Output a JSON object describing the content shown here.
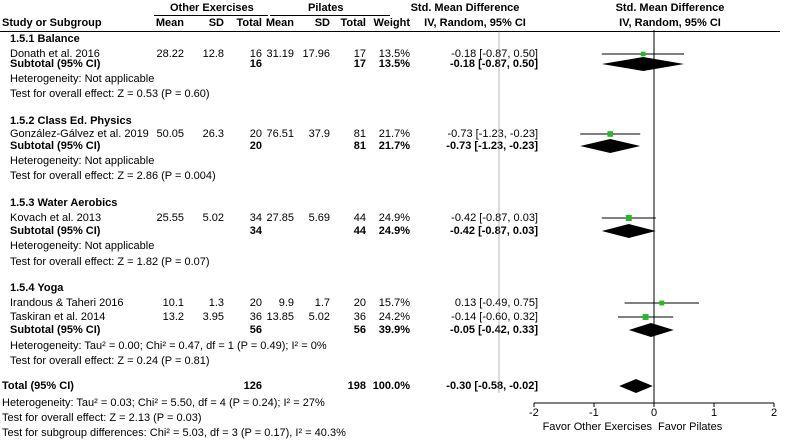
{
  "header": {
    "group1": "Other Exercises",
    "group2": "Pilates",
    "smd_title": "Std. Mean Difference",
    "study_col": "Study or Subgroup",
    "mean": "Mean",
    "sd": "SD",
    "total": "Total",
    "weight": "Weight",
    "method_table": "IV, Random, 95% CI",
    "method_plot": "IV, Random, 95% CI"
  },
  "subgroups": [
    {
      "title": "1.5.1 Balance",
      "studies": [
        {
          "name": "Donath et al. 2016",
          "m1": "28.22",
          "sd1": "12.8",
          "n1": "16",
          "m2": "31.19",
          "sd2": "17.96",
          "n2": "17",
          "weight": "13.5%",
          "ci_text": "-0.18 [-0.87, 0.50]"
        }
      ],
      "subtotal": {
        "label": "Subtotal (95% CI)",
        "n1": "16",
        "n2": "17",
        "weight": "13.5%",
        "ci_text": "-0.18 [-0.87, 0.50]"
      },
      "heterogeneity": "Heterogeneity: Not applicable",
      "overall": "Test for overall effect: Z = 0.53 (P = 0.60)"
    },
    {
      "title": "1.5.2 Class Ed. Physics",
      "studies": [
        {
          "name": "González-Gálvez et al. 2019",
          "m1": "50.05",
          "sd1": "26.3",
          "n1": "20",
          "m2": "76.51",
          "sd2": "37.9",
          "n2": "81",
          "weight": "21.7%",
          "ci_text": "-0.73 [-1.23, -0.23]"
        }
      ],
      "subtotal": {
        "label": "Subtotal (95% CI)",
        "n1": "20",
        "n2": "81",
        "weight": "21.7%",
        "ci_text": "-0.73 [-1.23, -0.23]"
      },
      "heterogeneity": "Heterogeneity: Not applicable",
      "overall": "Test for overall effect: Z = 2.86 (P = 0.004)"
    },
    {
      "title": "1.5.3 Water Aerobics",
      "studies": [
        {
          "name": "Kovach et al. 2013",
          "m1": "25.55",
          "sd1": "5.02",
          "n1": "34",
          "m2": "27.85",
          "sd2": "5.69",
          "n2": "44",
          "weight": "24.9%",
          "ci_text": "-0.42 [-0.87, 0.03]"
        }
      ],
      "subtotal": {
        "label": "Subtotal (95% CI)",
        "n1": "34",
        "n2": "44",
        "weight": "24.9%",
        "ci_text": "-0.42 [-0.87, 0.03]"
      },
      "heterogeneity": "Heterogeneity: Not applicable",
      "overall": "Test for overall effect: Z = 1.82 (P = 0.07)"
    },
    {
      "title": "1.5.4 Yoga",
      "studies": [
        {
          "name": "Irandous & Taheri 2016",
          "m1": "10.1",
          "sd1": "1.3",
          "n1": "20",
          "m2": "9.9",
          "sd2": "1.7",
          "n2": "20",
          "weight": "15.7%",
          "ci_text": "0.13 [-0.49, 0.75]"
        },
        {
          "name": "Taskiran et al. 2014",
          "m1": "13.2",
          "sd1": "3.95",
          "n1": "36",
          "m2": "13.85",
          "sd2": "5.02",
          "n2": "36",
          "weight": "24.2%",
          "ci_text": "-0.14 [-0.60, 0.32]"
        }
      ],
      "subtotal": {
        "label": "Subtotal (95% CI)",
        "n1": "56",
        "n2": "56",
        "weight": "39.9%",
        "ci_text": "-0.05 [-0.42, 0.33]"
      },
      "heterogeneity": "Heterogeneity: Tau² = 0.00; Chi² = 0.47, df = 1 (P = 0.49); I² = 0%",
      "overall": "Test for overall effect: Z = 0.24 (P = 0.81)"
    }
  ],
  "total": {
    "label": "Total (95% CI)",
    "n1": "126",
    "n2": "198",
    "weight": "100.0%",
    "ci_text": "-0.30 [-0.58, -0.02]",
    "heterogeneity": "Heterogeneity: Tau² = 0.03; Chi² = 5.50, df = 4 (P = 0.24); I² = 27%",
    "overall": "Test for overall effect: Z = 2.13 (P = 0.03)",
    "subgroup_diff": "Test for subgroup differences: Chi² = 5.03, df = 3 (P = 0.17), I² = 40.3%"
  },
  "axis": {
    "ticks": [
      "-2",
      "-1",
      "0",
      "1",
      "2"
    ],
    "favor_left": "Favor Other Exercises",
    "favor_right": "Favor Pilates"
  },
  "colors": {
    "marker": "#22bb22",
    "line": "#000000",
    "diamond": "#000000"
  },
  "chart_data": {
    "type": "forest",
    "title": "Std. Mean Difference, IV, Random, 95% CI",
    "xlim": [
      -2,
      2
    ],
    "xticks": [
      -2,
      -1,
      0,
      1,
      2
    ],
    "xlabel_left": "Favor Other Exercises",
    "xlabel_right": "Favor Pilates",
    "studies": [
      {
        "name": "Donath et al. 2016",
        "est": -0.18,
        "lo": -0.87,
        "hi": 0.5,
        "weight": 13.5
      },
      {
        "name": "González-Gálvez et al. 2019",
        "est": -0.73,
        "lo": -1.23,
        "hi": -0.23,
        "weight": 21.7
      },
      {
        "name": "Kovach et al. 2013",
        "est": -0.42,
        "lo": -0.87,
        "hi": 0.03,
        "weight": 24.9
      },
      {
        "name": "Irandous & Taheri 2016",
        "est": 0.13,
        "lo": -0.49,
        "hi": 0.75,
        "weight": 15.7
      },
      {
        "name": "Taskiran et al. 2014",
        "est": -0.14,
        "lo": -0.6,
        "hi": 0.32,
        "weight": 24.2
      }
    ],
    "subtotals": [
      {
        "name": "1.5.1 Balance",
        "est": -0.18,
        "lo": -0.87,
        "hi": 0.5
      },
      {
        "name": "1.5.2 Class Ed. Physics",
        "est": -0.73,
        "lo": -1.23,
        "hi": -0.23
      },
      {
        "name": "1.5.3 Water Aerobics",
        "est": -0.42,
        "lo": -0.87,
        "hi": 0.03
      },
      {
        "name": "1.5.4 Yoga",
        "est": -0.05,
        "lo": -0.42,
        "hi": 0.33
      }
    ],
    "overall": {
      "name": "Total",
      "est": -0.3,
      "lo": -0.58,
      "hi": -0.02
    }
  }
}
